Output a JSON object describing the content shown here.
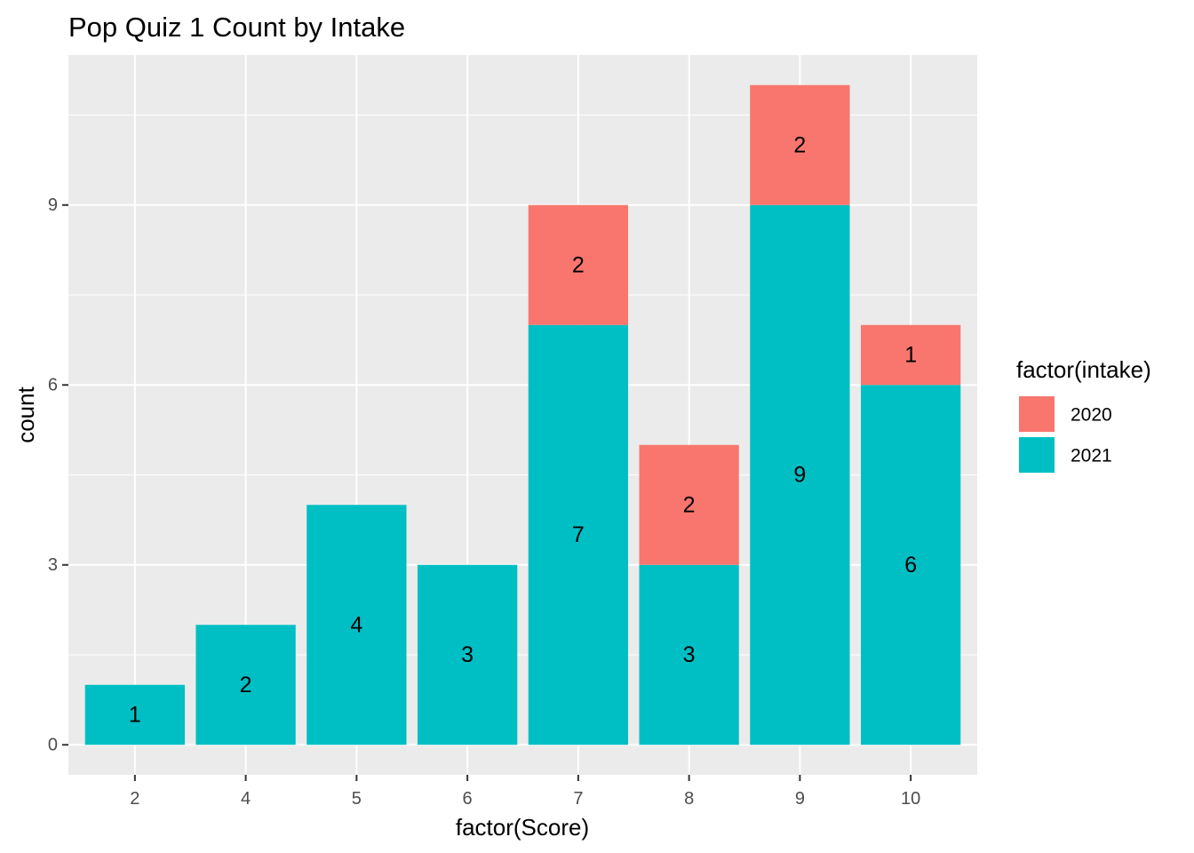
{
  "chart_data": {
    "type": "bar",
    "stacked": true,
    "title": "Pop Quiz 1 Count by Intake",
    "xlabel": "factor(Score)",
    "ylabel": "count",
    "categories": [
      "2",
      "4",
      "5",
      "6",
      "7",
      "8",
      "9",
      "10"
    ],
    "ylim": [
      -0.5,
      11.5
    ],
    "yticks": [
      "0",
      "3",
      "6",
      "9"
    ],
    "grid": true,
    "legend": {
      "title": "factor(intake)",
      "placement": "right"
    },
    "series": [
      {
        "name": "2021",
        "color": "#00BFC4",
        "values": [
          1,
          2,
          4,
          3,
          7,
          3,
          9,
          6
        ]
      },
      {
        "name": "2020",
        "color": "#F8766D",
        "values": [
          0,
          0,
          0,
          0,
          2,
          2,
          2,
          1
        ]
      }
    ]
  }
}
